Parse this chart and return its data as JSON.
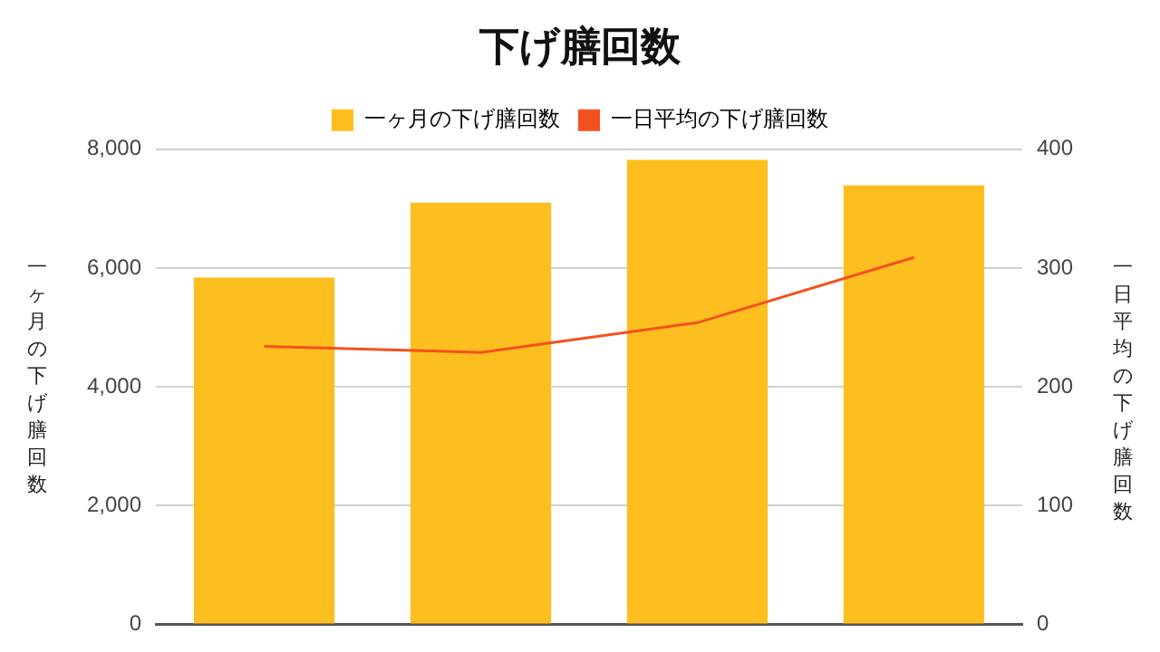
{
  "chart_data": {
    "type": "bar",
    "title": "下げ膳回数",
    "xlabel": null,
    "ylabel": "一ヶ月の下げ膳回数",
    "y2label": "一日平均の下げ膳回数",
    "categories": [
      null,
      null,
      null,
      null
    ],
    "series": [
      {
        "name": "一ヶ月の下げ膳回数",
        "color": "#fdbf1f",
        "values": [
          5840,
          7100,
          7820,
          7390
        ]
      },
      {
        "name": "一日平均の下げ膳回数",
        "type": "line",
        "axis": "y2",
        "color": "#f4511e",
        "values": [
          234,
          229,
          254,
          309
        ]
      }
    ],
    "ylim": [
      0,
      8000
    ],
    "yticks": [
      {
        "value": 0,
        "label": "0"
      },
      {
        "value": 2000,
        "label": "2,000"
      },
      {
        "value": 4000,
        "label": "4,000"
      },
      {
        "value": 6000,
        "label": "6,000"
      },
      {
        "value": 8000,
        "label": "8,000"
      }
    ],
    "y2lim": [
      0,
      400
    ],
    "y2ticks": [
      0,
      100,
      200,
      300,
      400
    ],
    "grid": "y",
    "legend": "top",
    "tick_labels": "y",
    "marker": "none"
  }
}
